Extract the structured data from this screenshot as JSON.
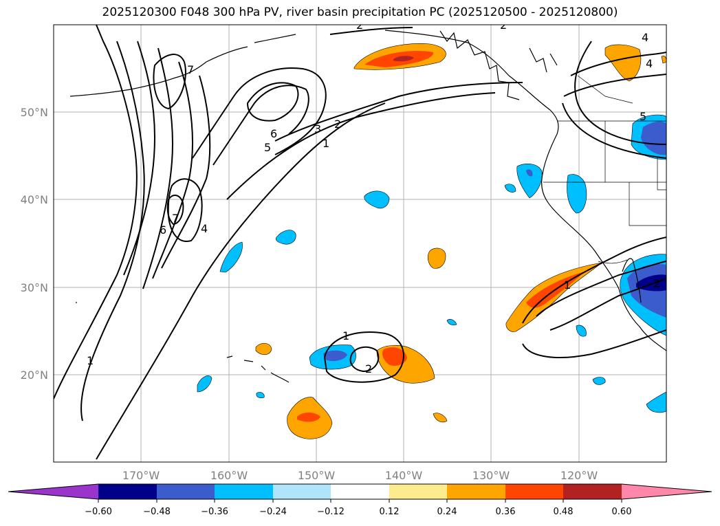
{
  "title": "2025120300 F048 300 hPa PV, river basin precipitation PC (2025120500 - 2025120800)",
  "lat_labels": [
    "50°N",
    "40°N",
    "30°N",
    "20°N"
  ],
  "lon_labels": [
    "170°W",
    "160°W",
    "150°W",
    "140°W",
    "130°W",
    "120°W"
  ],
  "contour_labels": [
    "1",
    "2",
    "3",
    "4",
    "5",
    "6",
    "7",
    "1",
    "2",
    "6",
    "7",
    "4",
    "1",
    "2",
    "1",
    "2",
    "4",
    "5",
    "2"
  ],
  "colorbar": {
    "ticks": [
      "−0.60",
      "−0.48",
      "−0.36",
      "−0.24",
      "−0.12",
      "0.12",
      "0.24",
      "0.36",
      "0.48",
      "0.60"
    ],
    "colors": [
      "#9a35cc",
      "#00008b",
      "#3a5ccc",
      "#00bfff",
      "#afe4fb",
      "#ffffff",
      "#fdec8d",
      "#ffa500",
      "#ff4500",
      "#b22222",
      "#ff87aa"
    ]
  },
  "chart_data": {
    "type": "map",
    "title": "2025120300 F048 300 hPa PV, river basin precipitation PC (2025120500 - 2025120800)",
    "lon_range": [
      -180,
      -110
    ],
    "lat_range": [
      10,
      60
    ],
    "contour_field": "300 hPa PV",
    "contour_levels": [
      1,
      2,
      3,
      4,
      5,
      6,
      7
    ],
    "shaded_field": "river basin precipitation PC",
    "color_levels": [
      -0.6,
      -0.48,
      -0.36,
      -0.24,
      -0.12,
      0.12,
      0.24,
      0.36,
      0.48,
      0.6
    ]
  }
}
